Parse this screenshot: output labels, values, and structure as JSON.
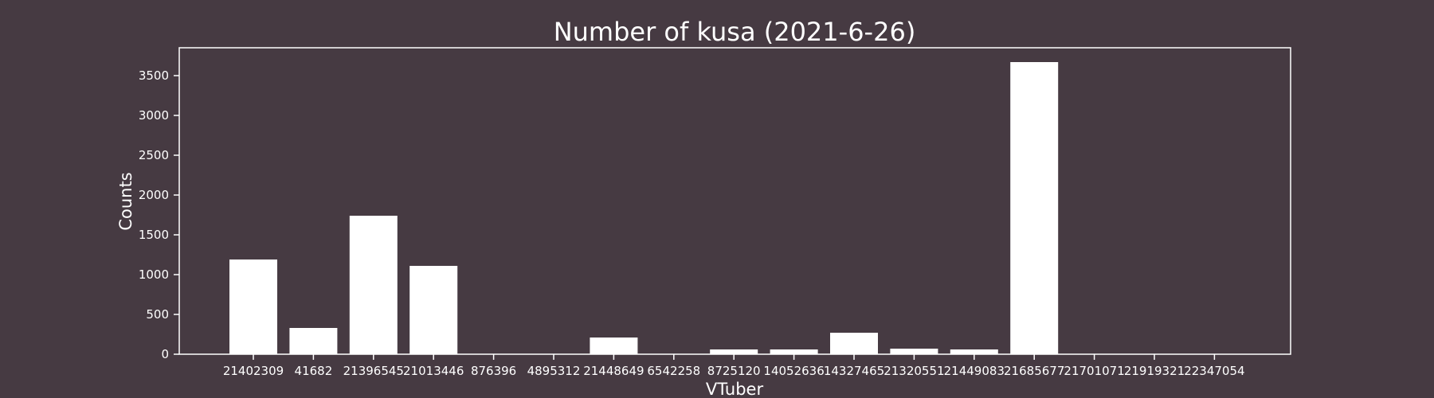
{
  "chart_data": {
    "type": "bar",
    "title": "Number of kusa (2021-6-26)",
    "xlabel": "VTuber",
    "ylabel": "Counts",
    "categories": [
      "21402309",
      "41682",
      "21396545",
      "21013446",
      "876396",
      "4895312",
      "21448649",
      "6542258",
      "8725120",
      "14052636",
      "14327465",
      "21320551",
      "21449083",
      "21685677",
      "21701071",
      "21919321",
      "22347054"
    ],
    "values": [
      1190,
      330,
      1740,
      1110,
      0,
      0,
      210,
      0,
      60,
      60,
      270,
      70,
      60,
      3670,
      0,
      0,
      0
    ],
    "yticks": [
      0,
      500,
      1000,
      1500,
      2000,
      2500,
      3000,
      3500
    ],
    "ylim": [
      0,
      3850
    ],
    "grid": false,
    "colors": {
      "background": "#463a42",
      "bar": "#ffffff",
      "axis": "#ffffff",
      "text": "#ffffff"
    }
  }
}
